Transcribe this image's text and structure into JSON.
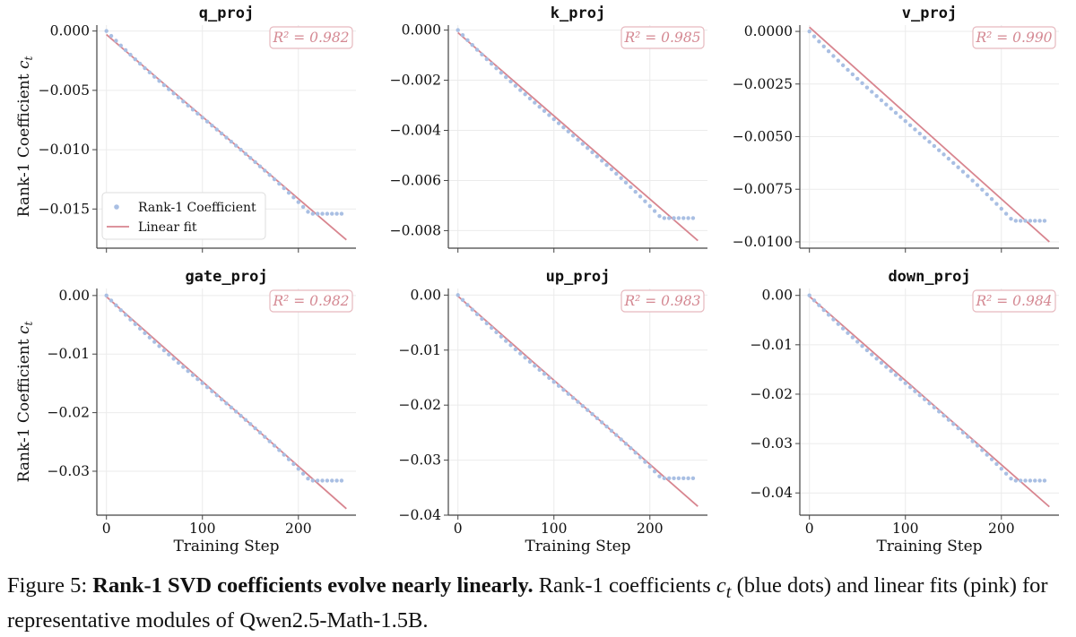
{
  "figure": {
    "xlabel": "Training Step",
    "ylabel": "Rank-1 Coefficient",
    "ylabel_sub": "t",
    "legend": {
      "dots": "Rank-1 Coefficient",
      "line": "Linear fit"
    },
    "colors": {
      "dots": "#a9bfe3",
      "fit": "#d8858f",
      "r2_text": "#d48892",
      "r2_border": "#e7b9bf"
    }
  },
  "chart_data": [
    {
      "type": "scatter",
      "title": "q_proj",
      "xlabel": "",
      "ylabel": "Rank-1 Coefficient c_t",
      "xlim": [
        -10,
        260
      ],
      "ylim": [
        -0.0183,
        0.0005
      ],
      "xticks": [
        "0",
        "100",
        "200"
      ],
      "yticks": [
        0.0,
        -0.005,
        -0.01,
        -0.015
      ],
      "ytick_labels": [
        "0.000",
        "−0.005",
        "−0.010",
        "−0.015"
      ],
      "r2_label": "R² = 0.982",
      "grid": true,
      "legend": "lower-left",
      "series": [
        {
          "name": "Rank-1 Coefficient",
          "kind": "dots",
          "x_start": 0,
          "x_end": 245,
          "x_step": 5,
          "y_end": -0.0154,
          "x_plateau": 212
        },
        {
          "name": "Linear fit",
          "kind": "line",
          "x": [
            0,
            250
          ],
          "y": [
            -0.0003,
            -0.0176
          ]
        }
      ]
    },
    {
      "type": "scatter",
      "title": "k_proj",
      "xlabel": "",
      "ylabel": "",
      "xlim": [
        -10,
        260
      ],
      "ylim": [
        -0.0087,
        0.0002
      ],
      "xticks": [
        "0",
        "100",
        "200"
      ],
      "yticks": [
        0.0,
        -0.002,
        -0.004,
        -0.006,
        -0.008
      ],
      "ytick_labels": [
        "0.000",
        "−0.002",
        "−0.004",
        "−0.006",
        "−0.008"
      ],
      "r2_label": "R² = 0.985",
      "grid": true,
      "legend": "",
      "series": [
        {
          "name": "Rank-1 Coefficient",
          "kind": "dots",
          "x_start": 0,
          "x_end": 245,
          "x_step": 5,
          "y_end": -0.0075,
          "x_plateau": 212
        },
        {
          "name": "Linear fit",
          "kind": "line",
          "x": [
            0,
            250
          ],
          "y": [
            -0.0001,
            -0.0084
          ]
        }
      ]
    },
    {
      "type": "scatter",
      "title": "v_proj",
      "xlabel": "",
      "ylabel": "",
      "xlim": [
        -10,
        260
      ],
      "ylim": [
        -0.0103,
        0.0003
      ],
      "xticks": [
        "0",
        "100",
        "200"
      ],
      "yticks": [
        0.0,
        -0.0025,
        -0.005,
        -0.0075,
        -0.01
      ],
      "ytick_labels": [
        "0.0000",
        "−0.0025",
        "−0.0050",
        "−0.0075",
        "−0.0100"
      ],
      "r2_label": "R² = 0.990",
      "grid": true,
      "legend": "",
      "series": [
        {
          "name": "Rank-1 Coefficient",
          "kind": "dots",
          "x_start": 0,
          "x_end": 245,
          "x_step": 5,
          "y_end": -0.009,
          "x_plateau": 212
        },
        {
          "name": "Linear fit",
          "kind": "line",
          "x": [
            0,
            250
          ],
          "y": [
            0.0002,
            -0.01
          ]
        }
      ]
    },
    {
      "type": "scatter",
      "title": "gate_proj",
      "xlabel": "Training Step",
      "ylabel": "Rank-1 Coefficient c_t",
      "xlim": [
        -10,
        260
      ],
      "ylim": [
        -0.0375,
        0.0012
      ],
      "xticks": [
        "0",
        "100",
        "200"
      ],
      "yticks": [
        0.0,
        -0.01,
        -0.02,
        -0.03
      ],
      "ytick_labels": [
        "0.00",
        "−0.01",
        "−0.02",
        "−0.03"
      ],
      "r2_label": "R² = 0.982",
      "grid": true,
      "legend": "",
      "series": [
        {
          "name": "Rank-1 Coefficient",
          "kind": "dots",
          "x_start": 0,
          "x_end": 245,
          "x_step": 5,
          "y_end": -0.0316,
          "x_plateau": 212
        },
        {
          "name": "Linear fit",
          "kind": "line",
          "x": [
            0,
            250
          ],
          "y": [
            -0.0002,
            -0.0364
          ]
        }
      ]
    },
    {
      "type": "scatter",
      "title": "up_proj",
      "xlabel": "Training Step",
      "ylabel": "",
      "xlim": [
        -10,
        260
      ],
      "ylim": [
        -0.04,
        0.0012
      ],
      "xticks": [
        "0",
        "100",
        "200"
      ],
      "yticks": [
        0.0,
        -0.01,
        -0.02,
        -0.03,
        -0.04
      ],
      "ytick_labels": [
        "0.00",
        "−0.01",
        "−0.02",
        "−0.03",
        "−0.04"
      ],
      "r2_label": "R² = 0.983",
      "grid": true,
      "legend": "",
      "series": [
        {
          "name": "Rank-1 Coefficient",
          "kind": "dots",
          "x_start": 0,
          "x_end": 245,
          "x_step": 5,
          "y_end": -0.0333,
          "x_plateau": 212
        },
        {
          "name": "Linear fit",
          "kind": "line",
          "x": [
            0,
            250
          ],
          "y": [
            -0.0002,
            -0.0384
          ]
        }
      ]
    },
    {
      "type": "scatter",
      "title": "down_proj",
      "xlabel": "Training Step",
      "ylabel": "",
      "xlim": [
        -10,
        260
      ],
      "ylim": [
        -0.0445,
        0.0014
      ],
      "xticks": [
        "0",
        "100",
        "200"
      ],
      "yticks": [
        0.0,
        -0.01,
        -0.02,
        -0.03,
        -0.04
      ],
      "ytick_labels": [
        "0.00",
        "−0.01",
        "−0.02",
        "−0.03",
        "−0.04"
      ],
      "r2_label": "R² = 0.984",
      "grid": true,
      "legend": "",
      "series": [
        {
          "name": "Rank-1 Coefficient",
          "kind": "dots",
          "x_start": 0,
          "x_end": 245,
          "x_step": 5,
          "y_end": -0.0375,
          "x_plateau": 212
        },
        {
          "name": "Linear fit",
          "kind": "line",
          "x": [
            0,
            250
          ],
          "y": [
            -0.0002,
            -0.0428
          ]
        }
      ]
    }
  ],
  "caption": {
    "prefix": "Figure 5: ",
    "bold": "Rank-1 SVD coefficients evolve nearly linearly.",
    "text1": " Rank-1 coefficients ",
    "math": "c",
    "math_sub": "t",
    "text2": " (blue dots) and linear fits (pink) for representative modules of Qwen2.5-Math-1.5B."
  }
}
